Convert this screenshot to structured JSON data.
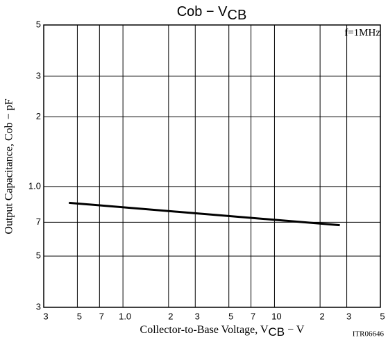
{
  "chart_data": {
    "type": "line",
    "title": {
      "text": "Cob  −  V",
      "subscript": "CB"
    },
    "xlabel": {
      "text": "Collector-to-Base Voltage, V",
      "subscript": "CB",
      "suffix": "  −  V"
    },
    "ylabel": "Output Capacitance, Cob  −  pF",
    "annotation": "f=1MHz",
    "code": "ITR06646",
    "xscale": "log",
    "yscale": "log",
    "grid": true,
    "xlim": [
      0.3,
      50
    ],
    "ylim": [
      0.3,
      5
    ],
    "xticks": [
      {
        "value": 0.3,
        "label": "3"
      },
      {
        "value": 0.5,
        "label": "5"
      },
      {
        "value": 0.7,
        "label": "7"
      },
      {
        "value": 1,
        "label": "1.0"
      },
      2,
      3,
      5,
      7,
      10,
      {
        "value": 20,
        "label": "2"
      },
      {
        "value": 30,
        "label": "3"
      },
      {
        "value": 50,
        "label": "5"
      }
    ],
    "yticks": [
      {
        "value": 0.3,
        "label": "3"
      },
      {
        "value": 0.5,
        "label": "5"
      },
      {
        "value": 0.7,
        "label": "7"
      },
      {
        "value": 1,
        "label": "1.0"
      },
      2,
      3,
      5
    ],
    "x": [
      0.44,
      27
    ],
    "series": [
      {
        "name": "Cob",
        "color": "#000000",
        "values": [
          0.85,
          0.68
        ]
      }
    ]
  }
}
